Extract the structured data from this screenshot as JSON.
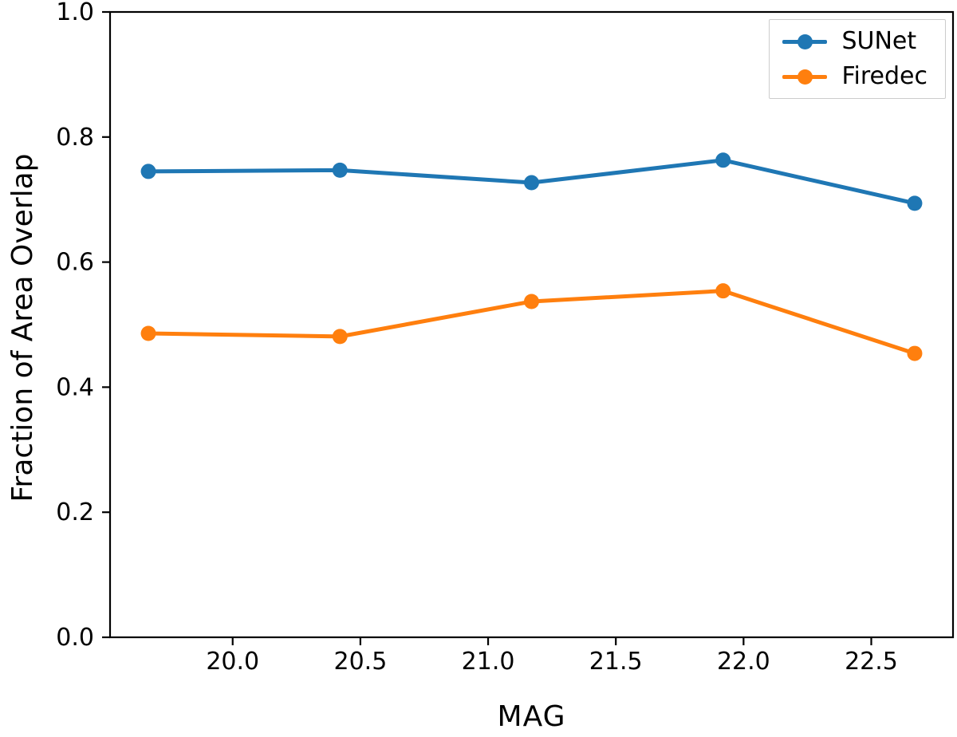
{
  "figure": {
    "background": "#ffffff"
  },
  "chart_data": {
    "type": "line",
    "title": "",
    "xlabel": "MAG",
    "ylabel": "Fraction of Area Overlap",
    "x": [
      19.67,
      20.42,
      21.17,
      21.92,
      22.67
    ],
    "series": [
      {
        "name": "SUNet",
        "color": "#1f77b4",
        "values": [
          0.745,
          0.747,
          0.727,
          0.763,
          0.694
        ]
      },
      {
        "name": "Firedec",
        "color": "#ff7f0e",
        "values": [
          0.486,
          0.481,
          0.537,
          0.554,
          0.454
        ]
      }
    ],
    "xlim": [
      19.52,
      22.82
    ],
    "ylim": [
      0.0,
      1.0
    ],
    "xticks": [
      20.0,
      20.5,
      21.0,
      21.5,
      22.0,
      22.5
    ],
    "xtick_labels": [
      "20.0",
      "20.5",
      "21.0",
      "21.5",
      "22.0",
      "22.5"
    ],
    "yticks": [
      0.0,
      0.2,
      0.4,
      0.6,
      0.8,
      1.0
    ],
    "ytick_labels": [
      "0.0",
      "0.2",
      "0.4",
      "0.6",
      "0.8",
      "1.0"
    ],
    "grid": false,
    "legend": {
      "position": "upper right",
      "entries": [
        "SUNet",
        "Firedec"
      ]
    },
    "axis_color": "#000000",
    "line_width": 5,
    "marker": "circle",
    "marker_radius": 9.5
  }
}
